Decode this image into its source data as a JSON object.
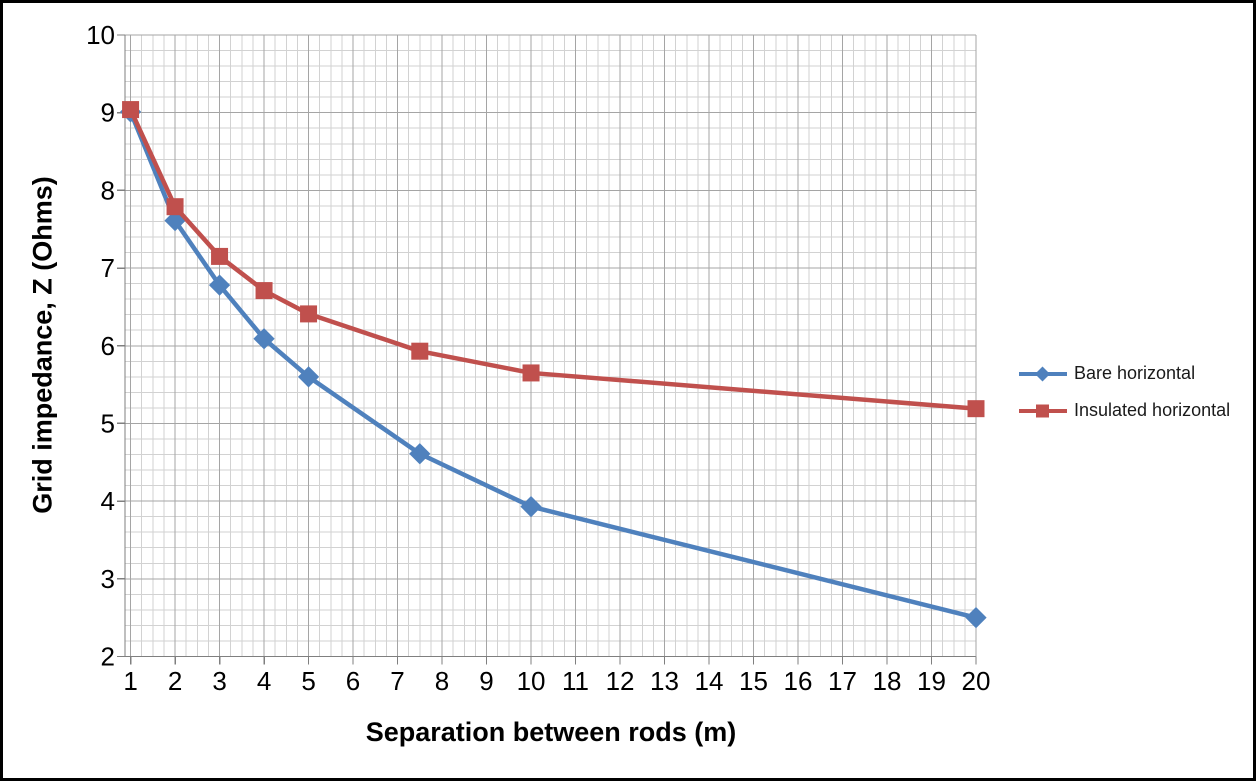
{
  "chart_data": {
    "type": "line",
    "title": "",
    "xlabel": "Separation between rods (m)",
    "ylabel": "Grid impedance, Z (Ohms)",
    "x": [
      1,
      2,
      3,
      4,
      5,
      7.5,
      10,
      20
    ],
    "series": [
      {
        "name": "Bare horizontal",
        "color": "#4F81BD",
        "marker": "diamond",
        "values": [
          9.01,
          7.61,
          6.78,
          6.09,
          5.6,
          4.61,
          3.93,
          2.5
        ]
      },
      {
        "name": "Insulated horizontal",
        "color": "#C0504D",
        "marker": "square",
        "values": [
          9.04,
          7.79,
          7.15,
          6.71,
          6.41,
          5.93,
          5.65,
          5.19
        ]
      }
    ],
    "xlim": [
      0.875,
      20
    ],
    "ylim": [
      2,
      10
    ],
    "x_major_ticks": [
      1,
      2,
      3,
      4,
      5,
      6,
      7,
      8,
      9,
      10,
      11,
      12,
      13,
      14,
      15,
      16,
      17,
      18,
      19,
      20
    ],
    "y_major_ticks": [
      2,
      3,
      4,
      5,
      6,
      7,
      8,
      9,
      10
    ],
    "x_minor_step": 0.25,
    "y_minor_step": 0.2,
    "grid": {
      "show_major": true,
      "show_minor": true,
      "minor_color": "#D2D2D2",
      "major_color": "#A5A5A5",
      "axis_color": "#7F7F7F",
      "tick_label_color": "#000000"
    },
    "legend_position": "right"
  }
}
